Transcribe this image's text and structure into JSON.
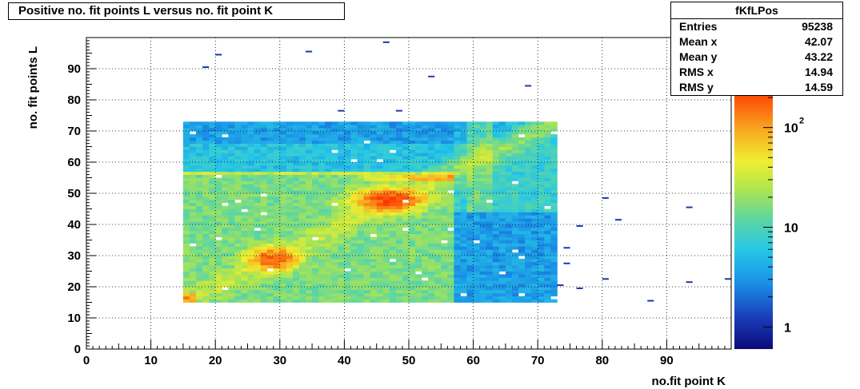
{
  "title": "Positive no. fit points L versus no. fit point K",
  "stats": {
    "name": "fKfLPos",
    "rows": [
      {
        "label": "Entries",
        "value": "95238"
      },
      {
        "label": "Mean x",
        "value": "42.07"
      },
      {
        "label": "Mean y",
        "value": "43.22"
      },
      {
        "label": "RMS x",
        "value": "14.94"
      },
      {
        "label": "RMS y",
        "value": "14.59"
      }
    ]
  },
  "chart_data": {
    "type": "heatmap",
    "title": "Positive no. fit points L versus no. fit point K",
    "xlabel": "no.fit point K",
    "ylabel": "no. fit points  L",
    "xlim": [
      0,
      100
    ],
    "ylim": [
      0,
      100
    ],
    "x_ticks": [
      0,
      10,
      20,
      30,
      40,
      50,
      60,
      70,
      80,
      90
    ],
    "y_ticks": [
      0,
      10,
      20,
      30,
      40,
      50,
      60,
      70,
      80,
      90
    ],
    "grid": true,
    "color_scale": "log",
    "z_range": [
      0.6,
      250
    ],
    "z_ticks": [
      {
        "value": 1,
        "label": "1"
      },
      {
        "value": 10,
        "label": "10"
      },
      {
        "value": 100,
        "label": "10",
        "sup": "2"
      }
    ],
    "dense_region": {
      "x": [
        15,
        73
      ],
      "y": [
        15,
        73
      ]
    },
    "hot_spots": [
      {
        "x": 29,
        "y": 29,
        "level": "max"
      },
      {
        "x": 47,
        "y": 48,
        "level": "max"
      },
      {
        "x": 55,
        "y": 55,
        "level": "high"
      },
      {
        "x": 15,
        "y": 16,
        "level": "high"
      }
    ],
    "isolated_bins": [
      {
        "x": 46,
        "y": 98
      },
      {
        "x": 20,
        "y": 94
      },
      {
        "x": 34,
        "y": 95
      },
      {
        "x": 18,
        "y": 90
      },
      {
        "x": 53,
        "y": 87
      },
      {
        "x": 68,
        "y": 84
      },
      {
        "x": 39,
        "y": 76
      },
      {
        "x": 48,
        "y": 76
      },
      {
        "x": 80,
        "y": 48
      },
      {
        "x": 82,
        "y": 41
      },
      {
        "x": 93,
        "y": 45
      },
      {
        "x": 76,
        "y": 39
      },
      {
        "x": 74,
        "y": 32
      },
      {
        "x": 74,
        "y": 27
      },
      {
        "x": 80,
        "y": 22
      },
      {
        "x": 93,
        "y": 21
      },
      {
        "x": 99,
        "y": 22
      },
      {
        "x": 73,
        "y": 20
      },
      {
        "x": 76,
        "y": 19
      },
      {
        "x": 87,
        "y": 15
      }
    ]
  },
  "colors": {
    "frame": "#000000",
    "low": "#0a2a7a",
    "mid": "#26c8e6",
    "high": "#e0f03a",
    "max": "#ff3a00"
  }
}
